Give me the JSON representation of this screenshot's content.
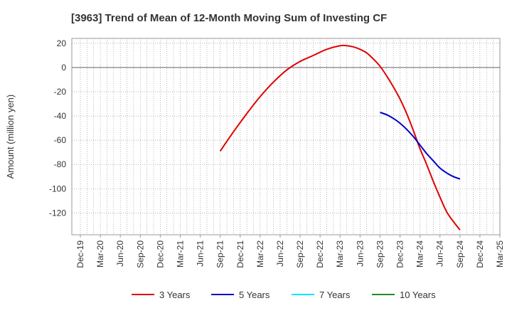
{
  "chart_data": {
    "type": "line",
    "title": "[3963]  Trend of Mean of 12-Month Moving Sum of Investing CF",
    "ylabel": "Amount (million yen)",
    "xlabel": "",
    "ylim": [
      -138,
      24
    ],
    "yticks": [
      20,
      0,
      -20,
      -40,
      -60,
      -80,
      -100,
      -120
    ],
    "x_tick_labels": [
      "Dec-19",
      "Mar-20",
      "Jun-20",
      "Sep-20",
      "Dec-20",
      "Mar-21",
      "Jun-21",
      "Sep-21",
      "Dec-21",
      "Mar-22",
      "Jun-22",
      "Sep-22",
      "Dec-22",
      "Mar-23",
      "Jun-23",
      "Sep-23",
      "Dec-23",
      "Mar-24",
      "Jun-24",
      "Sep-24",
      "Dec-24",
      "Mar-25"
    ],
    "grid": true,
    "legend_position": "bottom",
    "series": [
      {
        "name": "3 Years",
        "color": "#e00000",
        "x": [
          "Sep-21",
          "Nov-21",
          "Jan-22",
          "Mar-22",
          "May-22",
          "Jul-22",
          "Sep-22",
          "Nov-22",
          "Jan-23",
          "Mar-23",
          "Apr-23",
          "May-23",
          "Jun-23",
          "Jul-23",
          "Aug-23",
          "Sep-23",
          "Oct-23",
          "Nov-23",
          "Dec-23",
          "Jan-24",
          "Feb-24",
          "Mar-24",
          "Apr-24",
          "May-24",
          "Jun-24",
          "Jul-24",
          "Aug-24",
          "Sep-24"
        ],
        "values": [
          -69,
          -53,
          -38,
          -24,
          -12,
          -2,
          5,
          10,
          15,
          18,
          18,
          17,
          15,
          12,
          7,
          1,
          -7,
          -16,
          -26,
          -38,
          -52,
          -67,
          -80,
          -94,
          -107,
          -119,
          -127,
          -134
        ]
      },
      {
        "name": "5 Years",
        "color": "#0000cc",
        "x": [
          "Sep-23",
          "Oct-23",
          "Nov-23",
          "Dec-23",
          "Jan-24",
          "Feb-24",
          "Mar-24",
          "Apr-24",
          "May-24",
          "Jun-24",
          "Jul-24",
          "Aug-24",
          "Sep-24"
        ],
        "values": [
          -37,
          -39,
          -42,
          -46,
          -51,
          -57,
          -64,
          -71,
          -77,
          -83,
          -87,
          -90,
          -92
        ]
      },
      {
        "name": "7 Years",
        "color": "#00e5ff",
        "x": [],
        "values": []
      },
      {
        "name": "10 Years",
        "color": "#228b22",
        "x": [],
        "values": []
      }
    ]
  }
}
